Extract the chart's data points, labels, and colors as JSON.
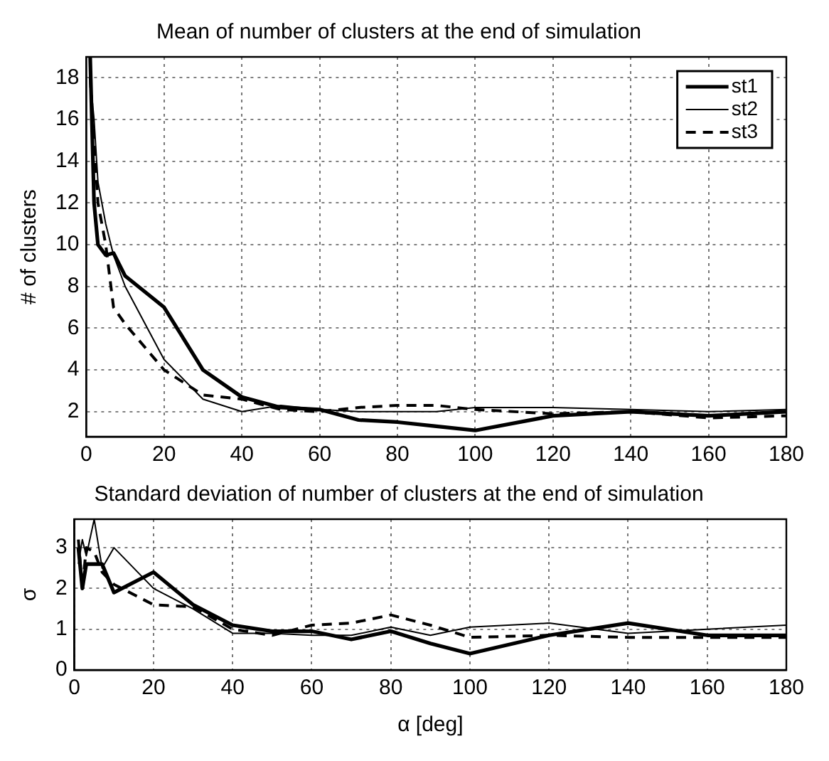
{
  "chart_data": [
    {
      "type": "line",
      "title": "Mean of number of clusters at the end of simulation",
      "ylabel": "# of clusters",
      "x": [
        1,
        2,
        3,
        5,
        7,
        10,
        20,
        30,
        40,
        50,
        60,
        70,
        80,
        90,
        100,
        120,
        140,
        160,
        180
      ],
      "xlim": [
        0,
        180
      ],
      "xticks": [
        0,
        20,
        40,
        60,
        80,
        100,
        120,
        140,
        160,
        180
      ],
      "ylim": [
        0.8,
        19
      ],
      "yticks": [
        2,
        4,
        6,
        8,
        10,
        12,
        14,
        16,
        18
      ],
      "grid": true,
      "legend": "top right",
      "marker": "none",
      "series": [
        {
          "name": "st1",
          "color": "#000000",
          "line_style": "solid",
          "values": [
            19,
            12,
            10,
            9.5,
            9.6,
            8.5,
            7,
            4,
            2.7,
            2.2,
            2.1,
            1.6,
            1.5,
            1.3,
            1.1,
            1.8,
            2.0,
            1.8,
            2.0
          ]
        },
        {
          "name": "st2",
          "color": "#000000",
          "line_style": "solid",
          "values": [
            18,
            16,
            13,
            11,
            9.5,
            8,
            4.5,
            2.6,
            2.0,
            2.3,
            2.1,
            2.0,
            2.0,
            2.0,
            2.2,
            2.2,
            2.1,
            2.0,
            2.1
          ]
        },
        {
          "name": "st3",
          "color": "#000000",
          "line_style": "dashed",
          "values": [
            18,
            15,
            12,
            10,
            7,
            6.2,
            4.0,
            2.8,
            2.6,
            2.1,
            2.0,
            2.2,
            2.3,
            2.3,
            2.1,
            1.9,
            2.0,
            1.7,
            1.8
          ]
        }
      ]
    },
    {
      "type": "line",
      "title": "Standard deviation of number of clusters at the end of simulation",
      "xlabel": "α [deg]",
      "ylabel": "σ",
      "x": [
        1,
        2,
        3,
        5,
        7,
        10,
        20,
        30,
        40,
        50,
        60,
        70,
        80,
        90,
        100,
        120,
        140,
        160,
        180
      ],
      "xlim": [
        0,
        180
      ],
      "xticks": [
        0,
        20,
        40,
        60,
        80,
        100,
        120,
        140,
        160,
        180
      ],
      "ylim": [
        0,
        3.7
      ],
      "yticks": [
        0,
        1,
        2,
        3
      ],
      "grid": true,
      "marker": "none",
      "series": [
        {
          "color": "#000000",
          "line_style": "solid",
          "values": [
            3,
            2,
            2.6,
            2.6,
            2.6,
            1.9,
            2.4,
            1.6,
            1.1,
            0.95,
            0.95,
            0.75,
            0.95,
            0.65,
            0.4,
            0.85,
            1.15,
            0.85,
            0.85
          ]
        },
        {
          "color": "#000000",
          "line_style": "solid",
          "values": [
            2.6,
            3.2,
            2.8,
            3.7,
            2.5,
            3.0,
            2.0,
            1.5,
            0.9,
            0.9,
            0.85,
            0.85,
            1.05,
            0.85,
            1.05,
            1.15,
            0.9,
            1.0,
            1.1
          ]
        },
        {
          "color": "#000000",
          "line_style": "dashed",
          "values": [
            3.2,
            2.0,
            3.0,
            2.9,
            2.4,
            2.1,
            1.6,
            1.55,
            1.0,
            0.85,
            1.1,
            1.15,
            1.35,
            1.1,
            0.8,
            0.85,
            0.8,
            0.8,
            0.8
          ]
        }
      ]
    }
  ]
}
